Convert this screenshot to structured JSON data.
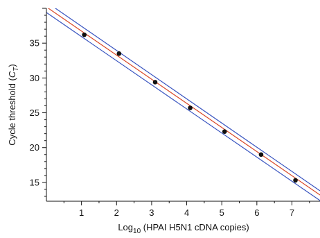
{
  "chart_data": {
    "type": "scatter",
    "xlabel_parts": {
      "before_sub": "Log",
      "sub": "10",
      "after_sub": " (HPAI H5N1 cDNA copies)"
    },
    "ylabel_parts": {
      "before_italic": "Cycle threshold (",
      "italic": "C",
      "sub": "T",
      "after_sub": ")"
    },
    "xlim": [
      0.0,
      7.8
    ],
    "ylim": [
      12.3,
      40.0
    ],
    "x_ticks": [
      1,
      2,
      3,
      4,
      5,
      6,
      7
    ],
    "y_ticks": [
      15,
      20,
      25,
      30,
      35
    ],
    "grid": false,
    "points": {
      "x": [
        1.08,
        2.07,
        3.1,
        4.1,
        5.08,
        6.12,
        7.1
      ],
      "y": [
        36.2,
        33.5,
        29.4,
        25.7,
        22.3,
        19.0,
        15.3
      ]
    },
    "fit_line": {
      "color": "#d94a2a",
      "from": [
        0.0,
        40.2
      ],
      "to": [
        7.8,
        13.2
      ]
    },
    "confidence_bands": {
      "color": "#3a55c0",
      "upper": {
        "from": [
          0.0,
          40.9
        ],
        "to": [
          7.8,
          13.8
        ]
      },
      "lower": {
        "from": [
          0.0,
          39.4
        ],
        "to": [
          7.8,
          12.4
        ]
      }
    },
    "point_color": "#111111"
  }
}
